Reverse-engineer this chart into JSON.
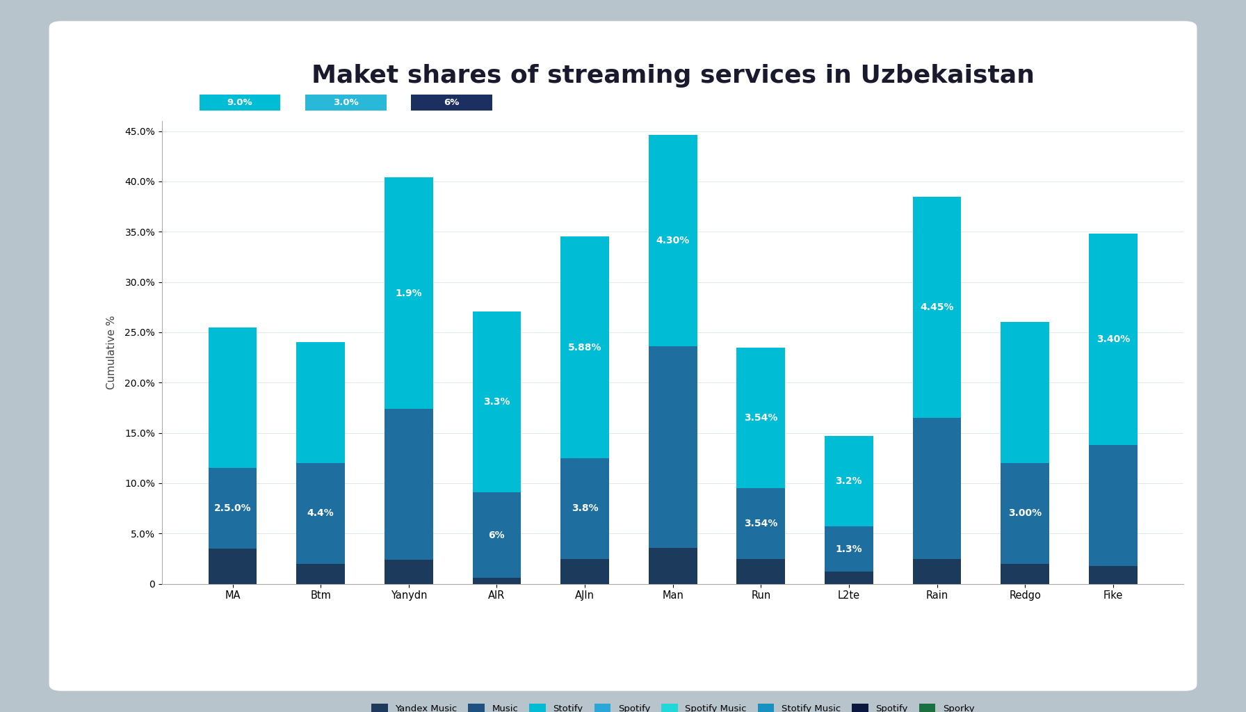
{
  "title": "Maket shares of streaming services in Uzbekaistan",
  "categories": [
    "MA",
    "Btm",
    "Yanydn",
    "AIR",
    "AJIn",
    "Man",
    "Run",
    "L2te",
    "Rain",
    "Redgo",
    "Fike"
  ],
  "seg1_yandex": [
    3.5,
    2.0,
    2.4,
    0.6,
    2.5,
    3.6,
    2.5,
    1.2,
    2.5,
    2.0,
    1.8
  ],
  "seg2_mid": [
    8.0,
    10.0,
    15.0,
    8.5,
    10.0,
    20.0,
    7.0,
    4.5,
    14.0,
    10.0,
    12.0
  ],
  "seg3_cyan": [
    14.0,
    12.0,
    23.0,
    18.0,
    22.0,
    21.0,
    14.0,
    9.0,
    22.0,
    14.0,
    21.0
  ],
  "color_dark": "#1b3a5c",
  "color_mid": "#1e6fa0",
  "color_cyan": "#00bcd4",
  "ylabel": "Cumulative %",
  "ylim_max": 46,
  "bar_width": 0.55,
  "ytick_vals": [
    0,
    5,
    10,
    15,
    20,
    25,
    30,
    35,
    40,
    45
  ],
  "ytick_labels": [
    "0",
    "5.0%",
    "10.0%",
    "15.0%",
    "20.0%",
    "25.0%",
    "30.0%",
    "35.0%",
    "40.0%",
    "45.0%"
  ],
  "title_fontsize": 26,
  "bar_label_fontsize": 10,
  "bg_color": "#ffffff",
  "frame_color": "#3d5568",
  "outer_bg": "#b8c4cc",
  "legend_top_colors": [
    "#00bcd4",
    "#29b8d8",
    "#1b3060"
  ],
  "legend_top_labels": [
    "9.0%",
    "3.0%",
    "6%"
  ],
  "bottom_legend_labels": [
    "Yandex Music",
    "Music",
    "Stotify",
    "Spotify",
    "Spotify Music",
    "Stotify Music",
    "Spotify",
    "Sporky"
  ],
  "bottom_legend_colors": [
    "#1b3a5c",
    "#1e5080",
    "#00bcd4",
    "#29a8d8",
    "#20d8d8",
    "#1890c0",
    "#0a1840",
    "#1a7040"
  ]
}
